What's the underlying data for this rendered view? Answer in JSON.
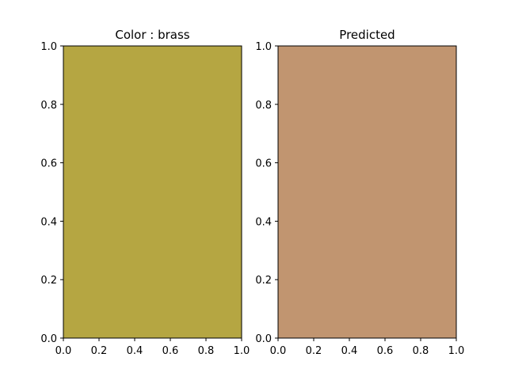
{
  "chart_data": [
    {
      "type": "color-swatch",
      "title": "Color : brass",
      "swatch_color": "#b5a642",
      "xlim": [
        0,
        1
      ],
      "ylim": [
        0,
        1
      ],
      "xticks": [
        0.0,
        0.2,
        0.4,
        0.6,
        0.8,
        1.0
      ],
      "yticks": [
        0.0,
        0.2,
        0.4,
        0.6,
        0.8,
        1.0
      ],
      "xtick_labels": [
        "0.0",
        "0.2",
        "0.4",
        "0.6",
        "0.8",
        "1.0"
      ],
      "ytick_labels": [
        "0.0",
        "0.2",
        "0.4",
        "0.6",
        "0.8",
        "1.0"
      ]
    },
    {
      "type": "color-swatch",
      "title": "Predicted",
      "swatch_color": "#c19570",
      "xlim": [
        0,
        1
      ],
      "ylim": [
        0,
        1
      ],
      "xticks": [
        0.0,
        0.2,
        0.4,
        0.6,
        0.8,
        1.0
      ],
      "yticks": [
        0.0,
        0.2,
        0.4,
        0.6,
        0.8,
        1.0
      ],
      "xtick_labels": [
        "0.0",
        "0.2",
        "0.4",
        "0.6",
        "0.8",
        "1.0"
      ],
      "ytick_labels": [
        "0.0",
        "0.2",
        "0.4",
        "0.6",
        "0.8",
        "1.0"
      ]
    }
  ]
}
